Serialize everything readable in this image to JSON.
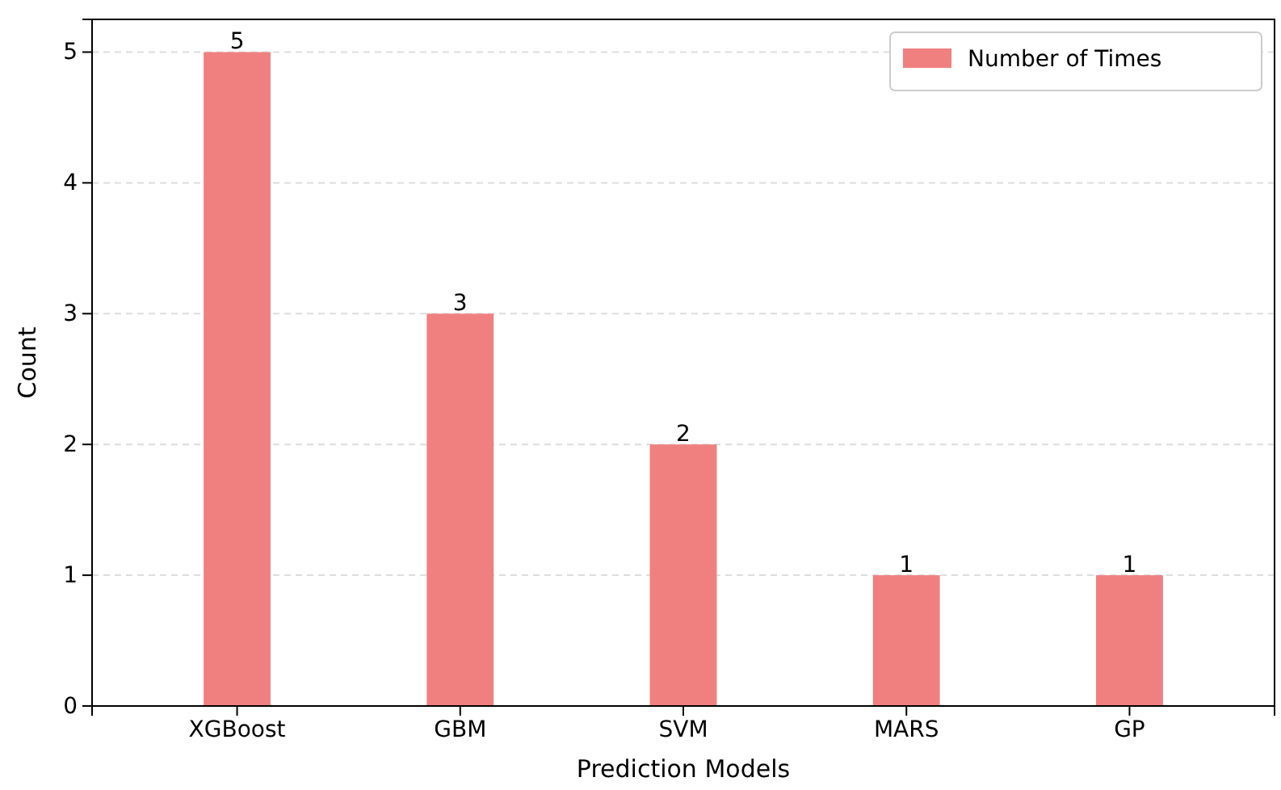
{
  "chart_data": {
    "type": "bar",
    "xlabel": "Prediction Models",
    "ylabel": "Count",
    "categories": [
      "XGBoost",
      "GBM",
      "SVM",
      "MARS",
      "GP"
    ],
    "series": [
      {
        "name": "Number of Times",
        "color": "#f08080",
        "values": [
          5,
          3,
          2,
          1,
          1
        ]
      }
    ],
    "ylim": [
      0,
      5.25
    ],
    "yticks": [
      0,
      1,
      2,
      3,
      4,
      5
    ],
    "grid": "y",
    "legend": "top right",
    "data_labels": true
  }
}
